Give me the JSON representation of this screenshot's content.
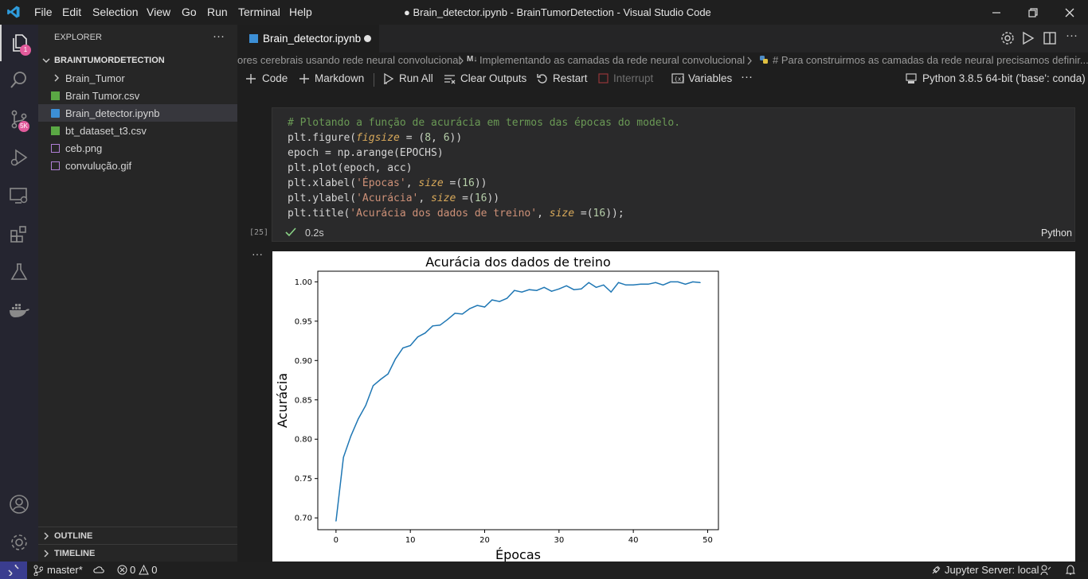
{
  "titlebar": {
    "menu": [
      "File",
      "Edit",
      "Selection",
      "View",
      "Go",
      "Run",
      "Terminal",
      "Help"
    ],
    "title": "● Brain_detector.ipynb - BrainTumorDetection - Visual Studio Code"
  },
  "activity": {
    "explorer_badge": "1",
    "scm_badge": "5K"
  },
  "sidebar": {
    "header": "EXPLORER",
    "more": "···",
    "project": "BRAINTUMORDETECTION",
    "items": [
      {
        "label": "Brain_Tumor",
        "kind": "folder"
      },
      {
        "label": "Brain Tumor.csv",
        "kind": "csv"
      },
      {
        "label": "Brain_detector.ipynb",
        "kind": "notebook"
      },
      {
        "label": "bt_dataset_t3.csv",
        "kind": "csv"
      },
      {
        "label": "ceb.png",
        "kind": "image"
      },
      {
        "label": "convulução.gif",
        "kind": "image"
      }
    ],
    "outline": "OUTLINE",
    "timeline": "TIMELINE"
  },
  "editor": {
    "tab_label": "Brain_detector.ipynb",
    "breadcrumb": {
      "part1": "ores cerebrais usando rede neural convolucional",
      "part2": "Implementando as camadas da rede neural convolucional",
      "part3": "# Para construirmos as camadas da rede neural precisamos definir..."
    },
    "toolbar": {
      "code": "Code",
      "markdown": "Markdown",
      "run_all": "Run All",
      "clear_outputs": "Clear Outputs",
      "restart": "Restart",
      "interrupt": "Interrupt",
      "variables": "Variables",
      "more": "···",
      "kernel": "Python 3.8.5 64-bit ('base': conda)"
    },
    "cell": {
      "exec_count": "[25]",
      "time": "0.2s",
      "language": "Python",
      "code_lines": [
        "# Plotando a função de acurácia em termos das épocas do modelo.",
        "plt.figure(figsize = (8, 6))",
        "epoch = np.arange(EPOCHS)",
        "plt.plot(epoch, acc)",
        "plt.xlabel('Épocas', size =(16))",
        "plt.ylabel('Acurácia', size =(16))",
        "plt.title('Acurácia dos dados de treino', size =(16));"
      ]
    },
    "output_more": "···"
  },
  "chart_data": {
    "type": "line",
    "title": "Acurácia dos dados de treino",
    "xlabel": "Épocas",
    "ylabel": "Acurácia",
    "xlim": [
      -2.45,
      51.45
    ],
    "ylim": [
      0.685,
      1.0135
    ],
    "xticks": [
      "0",
      "10",
      "20",
      "30",
      "40",
      "50"
    ],
    "yticks": [
      "0.70",
      "0.75",
      "0.80",
      "0.85",
      "0.90",
      "0.95",
      "1.00"
    ],
    "color": "#1f77b4",
    "x": [
      0,
      1,
      2,
      3,
      4,
      5,
      6,
      7,
      8,
      9,
      10,
      11,
      12,
      13,
      14,
      15,
      16,
      17,
      18,
      19,
      20,
      21,
      22,
      23,
      24,
      25,
      26,
      27,
      28,
      29,
      30,
      31,
      32,
      33,
      34,
      35,
      36,
      37,
      38,
      39,
      40,
      41,
      42,
      43,
      44,
      45,
      46,
      47,
      48,
      49
    ],
    "y": [
      0.696,
      0.777,
      0.804,
      0.826,
      0.843,
      0.868,
      0.876,
      0.883,
      0.902,
      0.916,
      0.919,
      0.93,
      0.935,
      0.944,
      0.945,
      0.952,
      0.96,
      0.959,
      0.966,
      0.97,
      0.968,
      0.977,
      0.975,
      0.979,
      0.989,
      0.987,
      0.99,
      0.989,
      0.993,
      0.988,
      0.991,
      0.995,
      0.99,
      0.991,
      0.999,
      0.993,
      0.996,
      0.987,
      0.999,
      0.996,
      0.996,
      0.997,
      0.997,
      0.999,
      0.996,
      1.0,
      1.0,
      0.997,
      1.0,
      0.999
    ]
  },
  "statusbar": {
    "branch": "master*",
    "errors": "0",
    "warnings": "0",
    "jupyter": "Jupyter Server: local"
  },
  "colors": {
    "accent": "#007acc",
    "badge": "#e25b9c",
    "check": "#89d185",
    "line": "#1f77b4"
  }
}
